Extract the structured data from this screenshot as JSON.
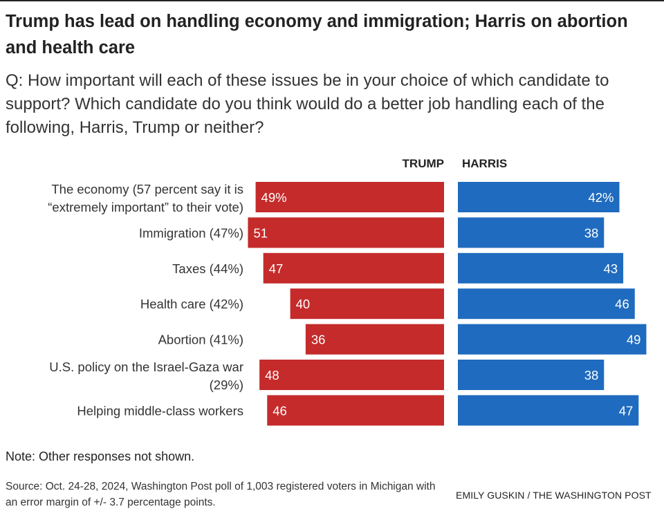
{
  "title": "Trump has lead on handling economy and immigration; Harris on abortion and health care",
  "question": "Q: How important will each of these issues be in your choice of which candidate to support? Which candidate do you think would do a better job handling each of the following, Harris, Trump or neither?",
  "note": "Note: Other responses not shown.",
  "source": "Source: Oct. 24-28, 2024, Washington Post poll of 1,003 registered voters in Michigan with an error margin of +/- 3.7 percentage points.",
  "credit": "EMILY GUSKIN / THE WASHINGTON POST",
  "colors": {
    "trump": "#c52b2b",
    "harris": "#1f6bbf"
  },
  "chart_data": {
    "type": "bar",
    "orientation": "horizontal-diverging",
    "unit": "percent",
    "series_headers": [
      "TRUMP",
      "HARRIS"
    ],
    "categories": [
      [
        "The economy (57 percent say it is",
        "“extremely important” to their vote)"
      ],
      [
        "Immigration (47%)"
      ],
      [
        "Taxes (44%)"
      ],
      [
        "Health care (42%)"
      ],
      [
        "Abortion (41%)"
      ],
      [
        "U.S. policy on the Israel-Gaza war",
        "(29%)"
      ],
      [
        "Helping middle-class workers"
      ]
    ],
    "series": [
      {
        "name": "TRUMP",
        "values": [
          49,
          51,
          47,
          40,
          36,
          48,
          46
        ],
        "labels": [
          "49%",
          "51",
          "47",
          "40",
          "36",
          "48",
          "46"
        ]
      },
      {
        "name": "HARRIS",
        "values": [
          42,
          38,
          43,
          46,
          49,
          38,
          47
        ],
        "labels": [
          "42%",
          "38",
          "43",
          "46",
          "49",
          "38",
          "47"
        ]
      }
    ]
  }
}
